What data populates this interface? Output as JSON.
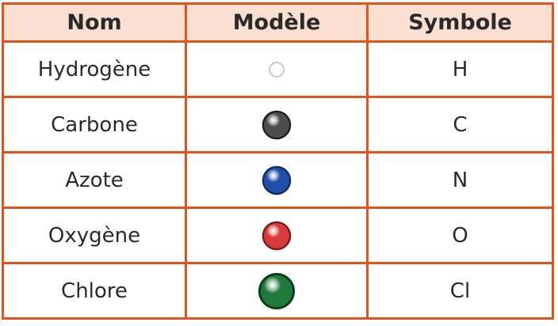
{
  "table": {
    "headers": {
      "name": "Nom",
      "model": "Modèle",
      "symbol": "Symbole"
    },
    "rows": [
      {
        "name": "Hydrogène",
        "symbol": "H",
        "model": {
          "icon": "white-sphere-icon",
          "color": "#ffffff",
          "stroke": "#b8b8b8",
          "size": "small"
        }
      },
      {
        "name": "Carbone",
        "symbol": "C",
        "model": {
          "icon": "dark-gray-sphere-icon",
          "color": "#4d4d4d",
          "stroke": "#1e1e1e",
          "size": "medium"
        }
      },
      {
        "name": "Azote",
        "symbol": "N",
        "model": {
          "icon": "blue-sphere-icon",
          "color": "#1f4fa8",
          "stroke": "#0d2a63",
          "size": "medium"
        }
      },
      {
        "name": "Oxygène",
        "symbol": "O",
        "model": {
          "icon": "red-sphere-icon",
          "color": "#d63a3a",
          "stroke": "#7a1616",
          "size": "medium"
        }
      },
      {
        "name": "Chlore",
        "symbol": "Cl",
        "model": {
          "icon": "green-sphere-icon",
          "color": "#1f7a3a",
          "stroke": "#0b3d1a",
          "size": "large"
        }
      }
    ]
  }
}
